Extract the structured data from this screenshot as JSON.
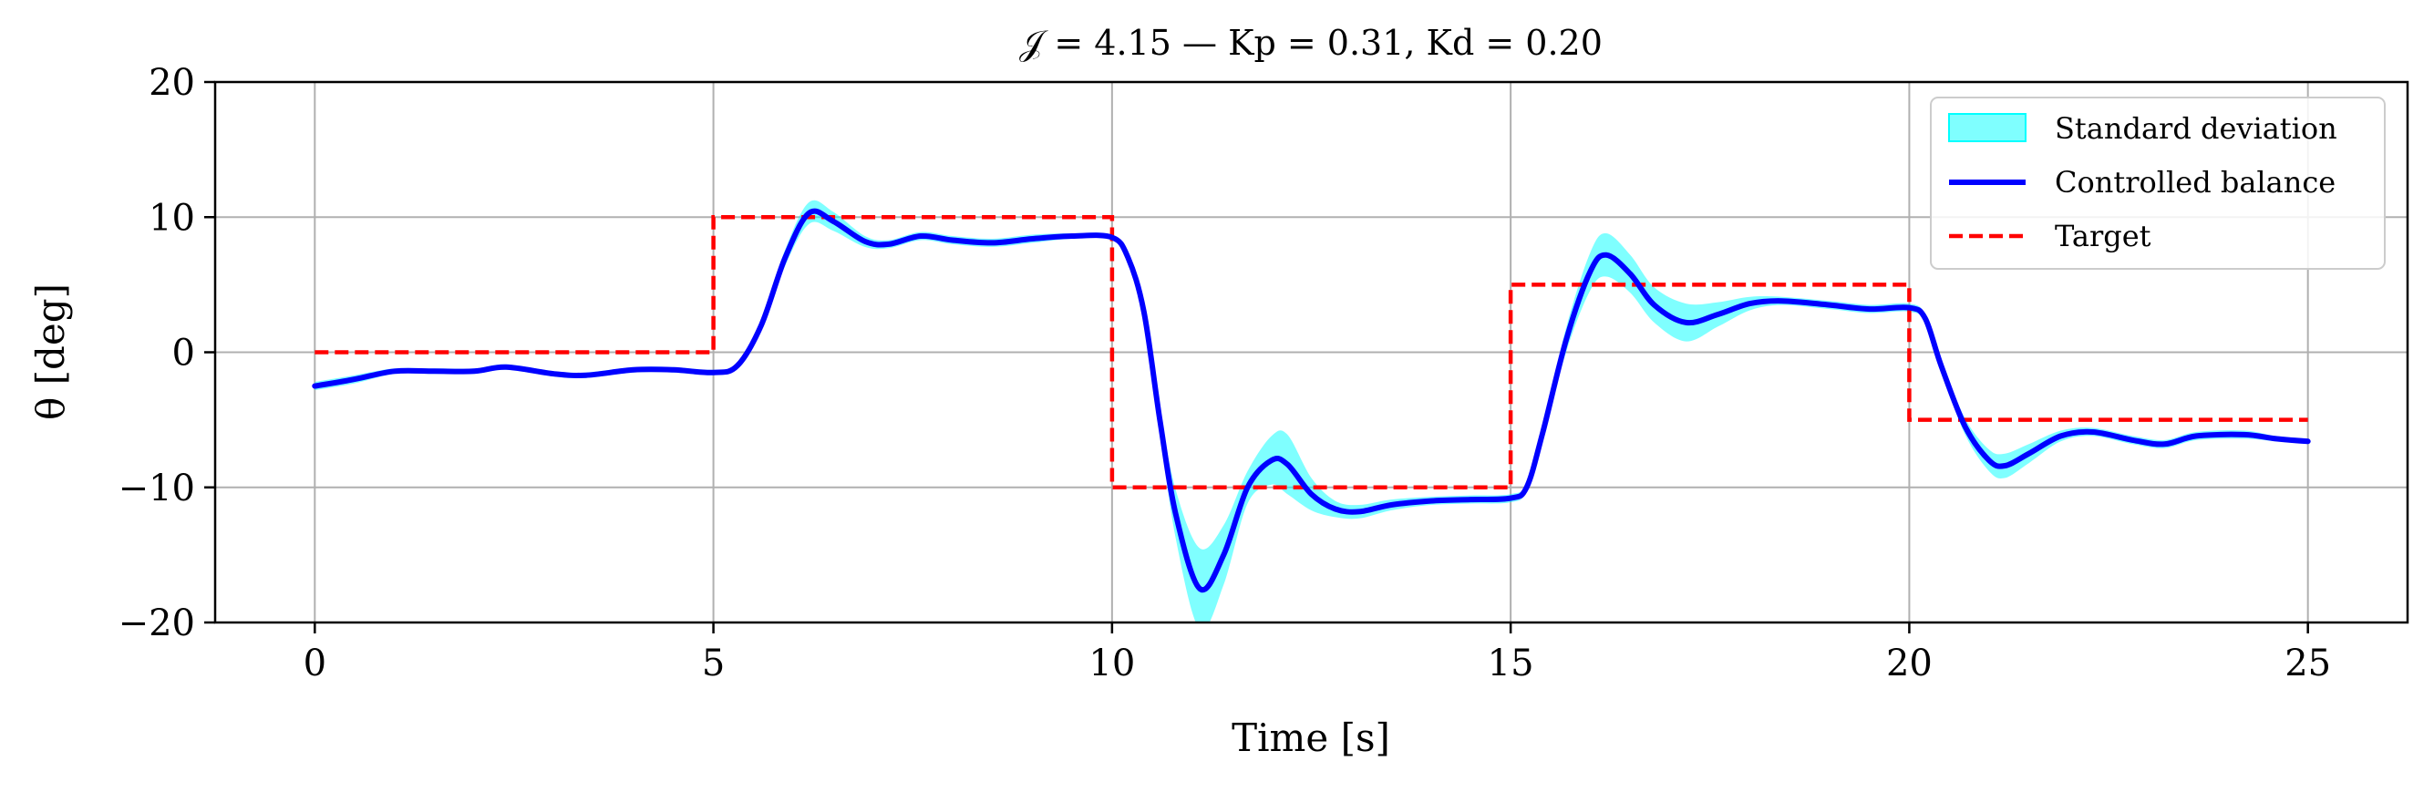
{
  "chart_data": {
    "type": "line",
    "title": "𝒥 = 4.15 — Kp = 0.31, Kd = 0.20",
    "xlabel": "Time [s]",
    "ylabel": "θ [deg]",
    "xlim": [
      -1.25,
      26.25
    ],
    "ylim": [
      -20,
      20
    ],
    "xticks": [
      0,
      5,
      10,
      15,
      20,
      25
    ],
    "yticks": [
      -20,
      -10,
      0,
      10,
      20
    ],
    "xtick_labels": [
      "0",
      "5",
      "10",
      "15",
      "20",
      "25"
    ],
    "ytick_labels": [
      "−20",
      "−10",
      "0",
      "10",
      "20"
    ],
    "grid": true,
    "legend_position": "top-right",
    "legend": [
      "Standard deviation",
      "Controlled balance",
      "Target"
    ],
    "colors": {
      "band": "#00ffff",
      "line": "#0000ff",
      "target": "#ff0000"
    },
    "series": [
      {
        "name": "Controlled balance",
        "x": [
          0,
          0.5,
          1,
          1.5,
          2,
          2.4,
          3,
          3.4,
          4,
          4.5,
          5,
          5.3,
          5.6,
          5.9,
          6.2,
          6.5,
          6.9,
          7.2,
          7.6,
          8,
          8.5,
          9,
          9.5,
          10,
          10.2,
          10.4,
          10.6,
          10.8,
          11.1,
          11.4,
          11.7,
          12,
          12.2,
          12.5,
          12.8,
          13.1,
          13.5,
          14,
          14.5,
          15,
          15.2,
          15.4,
          15.7,
          16,
          16.2,
          16.5,
          16.8,
          17.2,
          17.6,
          18,
          18.4,
          19,
          19.5,
          20,
          20.2,
          20.4,
          20.7,
          21,
          21.2,
          21.5,
          21.9,
          22.3,
          22.8,
          23.2,
          23.6,
          24.2,
          24.6,
          25
        ],
        "values": [
          -2.5,
          -2,
          -1.4,
          -1.4,
          -1.4,
          -1.1,
          -1.6,
          -1.7,
          -1.3,
          -1.3,
          -1.5,
          -1.0,
          2.0,
          7.0,
          10.3,
          9.7,
          8.2,
          8.0,
          8.6,
          8.3,
          8.1,
          8.4,
          8.6,
          8.5,
          7.0,
          3.0,
          -5.0,
          -12.0,
          -17.5,
          -15.0,
          -10.0,
          -8.0,
          -8.3,
          -10.5,
          -11.6,
          -11.8,
          -11.3,
          -11.0,
          -10.9,
          -10.8,
          -10.0,
          -6.0,
          1.0,
          6.0,
          7.2,
          5.8,
          3.5,
          2.2,
          2.8,
          3.6,
          3.8,
          3.5,
          3.2,
          3.3,
          2.5,
          -1.0,
          -5.5,
          -8.0,
          -8.4,
          -7.5,
          -6.2,
          -5.9,
          -6.5,
          -6.8,
          -6.2,
          -6.1,
          -6.4,
          -6.6
        ]
      },
      {
        "name": "Target",
        "x": [
          0,
          5,
          5,
          10,
          10,
          15,
          15,
          20,
          20,
          25
        ],
        "values": [
          0,
          0,
          10,
          10,
          -10,
          -10,
          5,
          5,
          -5,
          -5
        ]
      }
    ],
    "std_band": {
      "name": "Standard deviation",
      "x": [
        0,
        0.5,
        1,
        1.5,
        2,
        2.4,
        3,
        3.4,
        4,
        4.5,
        5,
        5.3,
        5.6,
        5.9,
        6.2,
        6.5,
        6.9,
        7.2,
        7.6,
        8,
        8.5,
        9,
        9.5,
        10,
        10.2,
        10.4,
        10.6,
        10.8,
        11.1,
        11.4,
        11.7,
        12,
        12.2,
        12.5,
        12.8,
        13.1,
        13.5,
        14,
        14.5,
        15,
        15.2,
        15.4,
        15.7,
        16,
        16.2,
        16.5,
        16.8,
        17.2,
        17.6,
        18,
        18.4,
        19,
        19.5,
        20,
        20.2,
        20.4,
        20.7,
        21,
        21.2,
        21.5,
        21.9,
        22.3,
        22.8,
        23.2,
        23.6,
        24.2,
        24.6,
        25
      ],
      "spread": [
        0.3,
        0.3,
        0.2,
        0.2,
        0.2,
        0.2,
        0.2,
        0.2,
        0.2,
        0.2,
        0.2,
        0.2,
        0.4,
        0.6,
        0.8,
        0.7,
        0.4,
        0.3,
        0.3,
        0.3,
        0.3,
        0.3,
        0.2,
        0.2,
        0.2,
        0.4,
        0.8,
        1.8,
        3.0,
        2.2,
        1.2,
        1.8,
        2.2,
        1.2,
        0.6,
        0.5,
        0.4,
        0.3,
        0.3,
        0.3,
        0.3,
        0.5,
        0.9,
        1.4,
        1.6,
        1.4,
        1.3,
        1.4,
        0.9,
        0.5,
        0.3,
        0.3,
        0.3,
        0.3,
        0.3,
        0.4,
        0.6,
        0.8,
        0.9,
        0.7,
        0.4,
        0.3,
        0.3,
        0.3,
        0.3,
        0.3,
        0.2,
        0.2
      ]
    }
  }
}
